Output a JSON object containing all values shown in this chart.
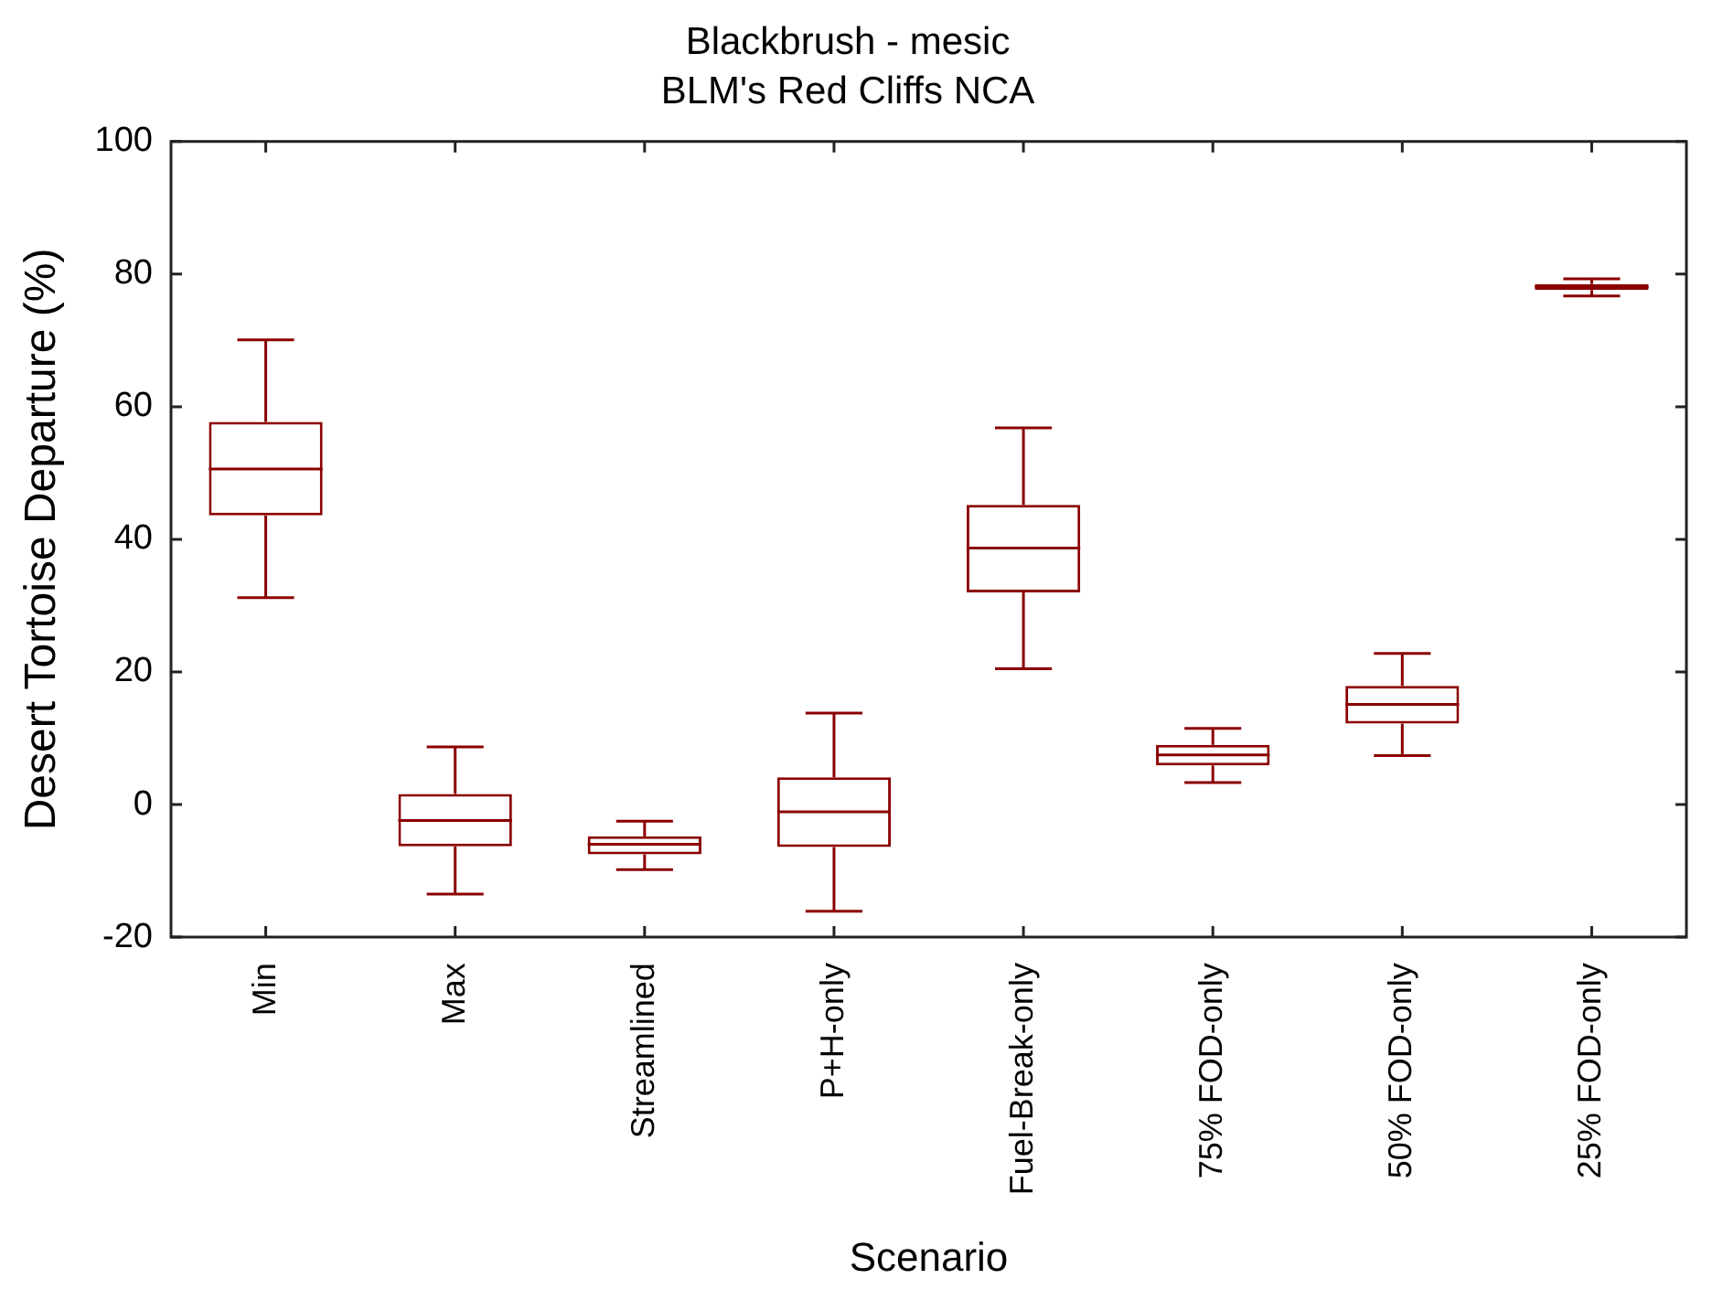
{
  "chart_data": {
    "type": "box",
    "title": "Blackbrush - mesic",
    "subtitle": "BLM's Red Cliffs NCA",
    "xlabel": "Scenario",
    "ylabel": "Desert Tortoise Departure (%)",
    "categories": [
      "Min",
      "Max",
      "Streamlined",
      "P+H-only",
      "Fuel-Break-only",
      "75% FOD-only",
      "50% FOD-only",
      "25% FOD-only"
    ],
    "color": "#8b0000",
    "ylim": [
      -20,
      100
    ],
    "yticks": [
      -20,
      0,
      20,
      40,
      60,
      80,
      100
    ],
    "grid": false,
    "boxes": [
      {
        "low": 31.2,
        "q1": 43.6,
        "median": 50.6,
        "q3": 57.7,
        "high": 70.1
      },
      {
        "low": -13.5,
        "q1": -6.3,
        "median": -2.4,
        "q3": 1.6,
        "high": 8.7
      },
      {
        "low": -9.8,
        "q1": -7.5,
        "median": -6.0,
        "q3": -4.8,
        "high": -2.5
      },
      {
        "low": -16.1,
        "q1": -6.4,
        "median": -1.1,
        "q3": 4.1,
        "high": 13.8
      },
      {
        "low": 20.5,
        "q1": 32.0,
        "median": 38.7,
        "q3": 45.2,
        "high": 56.8
      },
      {
        "low": 3.3,
        "q1": 5.9,
        "median": 7.5,
        "q3": 9.0,
        "high": 11.5
      },
      {
        "low": 7.4,
        "q1": 12.2,
        "median": 15.1,
        "q3": 17.9,
        "high": 22.8
      },
      {
        "low": 76.7,
        "q1": 77.6,
        "median": 78.1,
        "q3": 78.5,
        "high": 79.3
      }
    ]
  }
}
